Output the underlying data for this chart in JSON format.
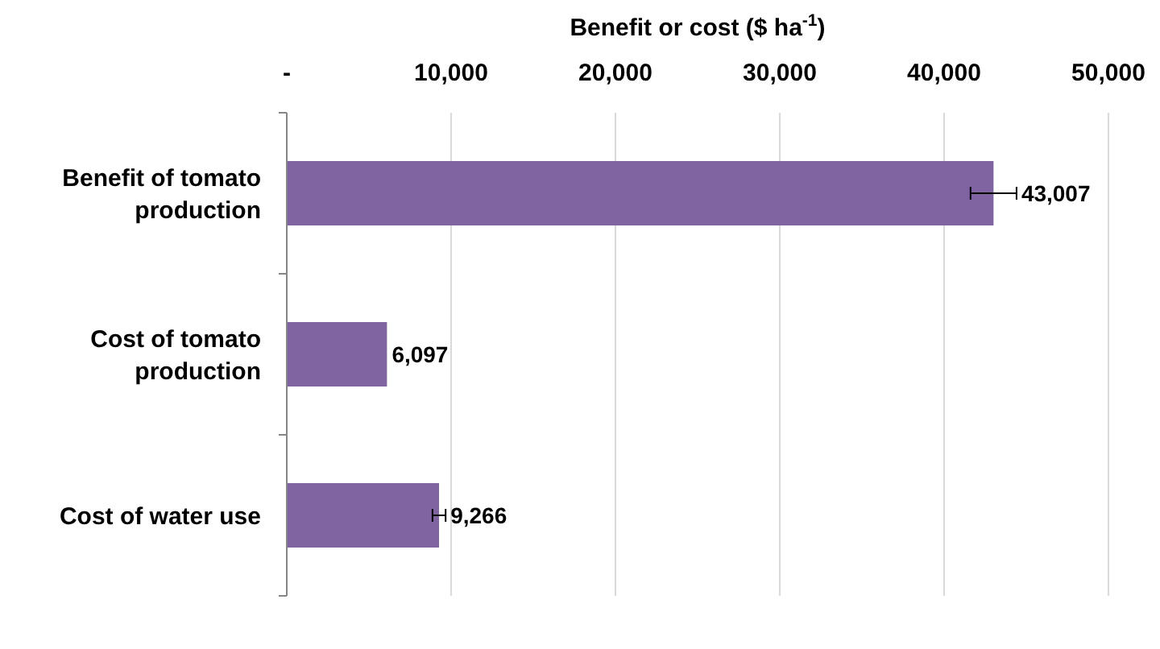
{
  "chart_data": {
    "type": "bar",
    "orientation": "horizontal",
    "xlabel": "Benefit or cost ($ ha$^{-1}$)",
    "categories": [
      "Benefit of tomato production",
      "Cost of tomato production",
      "Cost of water use"
    ],
    "values": [
      43007,
      6097,
      9266
    ],
    "errors": [
      1400,
      null,
      400
    ],
    "value_labels": [
      "43,007",
      "6,097",
      "9,266"
    ],
    "color": "#8064a2",
    "xlim": [
      0,
      50000
    ],
    "xticks": [
      {
        "value": 0,
        "label": "-"
      },
      {
        "value": 10000,
        "label": "10,000"
      },
      {
        "value": 20000,
        "label": "20,000"
      },
      {
        "value": 30000,
        "label": "30,000"
      },
      {
        "value": 40000,
        "label": "40,000"
      },
      {
        "value": 50000,
        "label": "50,000"
      }
    ],
    "grid": "x"
  }
}
